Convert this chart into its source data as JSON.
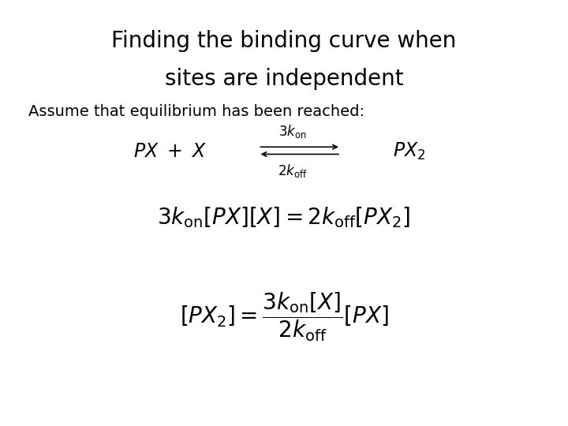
{
  "title_line1": "Finding the binding curve when",
  "title_line2": "sites are independent",
  "subtitle": "Assume that equilibrium has been reached:",
  "bg_color": "#ffffff",
  "text_color": "#000000",
  "title_fontsize": 20,
  "subtitle_fontsize": 14,
  "eq_fontsize": 16
}
